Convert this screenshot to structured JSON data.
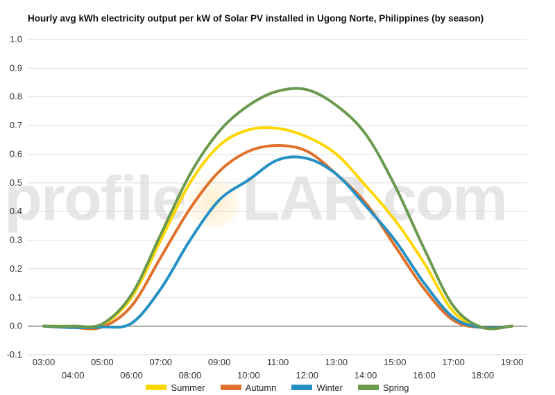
{
  "title": "Hourly avg kWh electricity output per kW of Solar PV installed in Ugong Norte, Philippines (by season)",
  "watermark": {
    "left": "profile",
    "right": "LAR.com"
  },
  "chart_data": {
    "type": "line",
    "x": [
      "03:00",
      "04:00",
      "05:00",
      "06:00",
      "07:00",
      "08:00",
      "09:00",
      "10:00",
      "11:00",
      "12:00",
      "13:00",
      "14:00",
      "15:00",
      "16:00",
      "17:00",
      "18:00",
      "19:00"
    ],
    "ylim": [
      -0.1,
      1.0
    ],
    "yticks": [
      "1.0",
      "0.9",
      "0.8",
      "0.7",
      "0.6",
      "0.5",
      "0.4",
      "0.3",
      "0.2",
      "0.1",
      "0.0",
      "-0.1"
    ],
    "grid": true,
    "legend_position": "bottom",
    "series": [
      {
        "name": "Summer",
        "color": "#FFD700",
        "values": [
          0,
          0,
          0.005,
          0.1,
          0.3,
          0.5,
          0.63,
          0.685,
          0.69,
          0.66,
          0.6,
          0.49,
          0.37,
          0.22,
          0.05,
          -0.005,
          0
        ]
      },
      {
        "name": "Autumn",
        "color": "#E0712C",
        "values": [
          0,
          -0.005,
          -0.003,
          0.07,
          0.24,
          0.41,
          0.54,
          0.61,
          0.63,
          0.61,
          0.53,
          0.43,
          0.28,
          0.13,
          0.02,
          -0.005,
          0
        ]
      },
      {
        "name": "Winter",
        "color": "#2490C4",
        "values": [
          0,
          -0.005,
          -0.003,
          0.01,
          0.13,
          0.3,
          0.44,
          0.51,
          0.58,
          0.585,
          0.53,
          0.42,
          0.3,
          0.15,
          0.03,
          -0.005,
          0
        ]
      },
      {
        "name": "Spring",
        "color": "#6B9A4F",
        "values": [
          0,
          0,
          0.008,
          0.11,
          0.32,
          0.53,
          0.68,
          0.77,
          0.82,
          0.825,
          0.77,
          0.67,
          0.49,
          0.27,
          0.07,
          -0.005,
          0
        ]
      }
    ]
  }
}
